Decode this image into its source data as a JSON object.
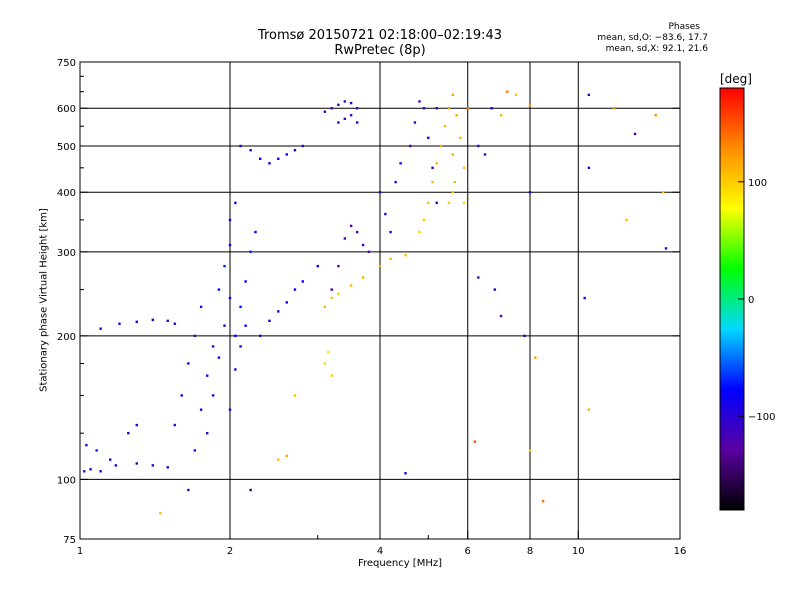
{
  "header": {
    "title": "Tromsø 20150721 02:18:00–02:19:43",
    "subtitle": "RwPretec (8p)",
    "stats_title": "Phases",
    "stats_o": "mean, sd,O: −83.6, 17.7",
    "stats_x": "mean, sd,X:  92.1, 21.6"
  },
  "chart_data": {
    "type": "scatter",
    "xlabel": "Frequency [MHz]",
    "ylabel": "Stationary phase Virtual Height [km]",
    "x_scale": "log",
    "y_scale": "log",
    "xlim": [
      1,
      16
    ],
    "ylim": [
      75,
      750
    ],
    "x_ticks": [
      1,
      2,
      4,
      6,
      8,
      10,
      16
    ],
    "x_ticks_minor": [
      3,
      5
    ],
    "x_tick_labels": [
      "1",
      "2",
      "4",
      "6",
      "8",
      "10",
      "16"
    ],
    "y_ticks": [
      75,
      100,
      200,
      300,
      400,
      500,
      600,
      750
    ],
    "y_tick_labels": [
      "75",
      "100",
      "200",
      "300",
      "400",
      "500",
      "600",
      "750"
    ],
    "grid": true,
    "grid_x": [
      2,
      4,
      6,
      8,
      10
    ],
    "grid_y": [
      100,
      200,
      300,
      400,
      500,
      600
    ],
    "colorbar": {
      "label": "[deg]",
      "range": [
        -180,
        180
      ],
      "ticks": [
        100,
        0,
        -100
      ],
      "tick_labels": [
        "100",
        "0",
        "−100"
      ],
      "colors": [
        "#000000",
        "#5a00a0",
        "#0000ff",
        "#00d8ff",
        "#00ff00",
        "#ffff00",
        "#ff8c00",
        "#ff0000"
      ]
    },
    "series": [
      {
        "values": [
          [
            1.02,
            104,
            -105
          ],
          [
            1.05,
            105,
            -100
          ],
          [
            1.1,
            104,
            -95
          ],
          [
            1.18,
            107,
            -100
          ],
          [
            1.3,
            108,
            -98
          ],
          [
            1.4,
            107,
            -102
          ],
          [
            1.5,
            106,
            -95
          ],
          [
            1.03,
            118,
            -100
          ],
          [
            1.08,
            115,
            -70
          ],
          [
            1.15,
            110,
            -105
          ],
          [
            1.25,
            125,
            -100
          ],
          [
            1.3,
            130,
            -95
          ],
          [
            1.1,
            207,
            -100
          ],
          [
            1.2,
            212,
            -95
          ],
          [
            1.3,
            214,
            -100
          ],
          [
            1.4,
            216,
            -90
          ],
          [
            1.5,
            215,
            -100
          ],
          [
            1.55,
            212,
            -98
          ],
          [
            1.55,
            130,
            -110
          ],
          [
            1.6,
            150,
            -100
          ],
          [
            1.65,
            175,
            -95
          ],
          [
            1.7,
            200,
            -105
          ],
          [
            1.75,
            230,
            -100
          ],
          [
            1.65,
            95,
            -105
          ],
          [
            1.7,
            115,
            -100
          ],
          [
            1.75,
            140,
            -98
          ],
          [
            1.8,
            165,
            -95
          ],
          [
            1.85,
            190,
            -100
          ],
          [
            1.8,
            125,
            -105
          ],
          [
            1.85,
            150,
            -100
          ],
          [
            1.9,
            180,
            -95
          ],
          [
            1.95,
            210,
            -100
          ],
          [
            2.0,
            240,
            -95
          ],
          [
            1.9,
            250,
            -75
          ],
          [
            1.95,
            280,
            -70
          ],
          [
            2.0,
            310,
            -80
          ],
          [
            2.0,
            350,
            -85
          ],
          [
            2.05,
            380,
            -90
          ],
          [
            2.05,
            200,
            -80
          ],
          [
            2.1,
            230,
            -75
          ],
          [
            2.15,
            260,
            -85
          ],
          [
            2.2,
            300,
            -70
          ],
          [
            2.25,
            330,
            -78
          ],
          [
            2.0,
            140,
            -100
          ],
          [
            2.05,
            170,
            -95
          ],
          [
            2.1,
            190,
            -90
          ],
          [
            2.15,
            210,
            -85
          ],
          [
            2.1,
            500,
            -90
          ],
          [
            2.2,
            490,
            -95
          ],
          [
            2.3,
            470,
            -85
          ],
          [
            2.4,
            460,
            -90
          ],
          [
            2.5,
            470,
            -80
          ],
          [
            2.6,
            480,
            -85
          ],
          [
            2.7,
            490,
            -90
          ],
          [
            2.8,
            500,
            -88
          ],
          [
            2.3,
            200,
            -90
          ],
          [
            2.4,
            215,
            -85
          ],
          [
            2.5,
            225,
            -95
          ],
          [
            2.6,
            235,
            -90
          ],
          [
            2.7,
            250,
            -85
          ],
          [
            2.8,
            260,
            -80
          ],
          [
            3.0,
            280,
            -85
          ],
          [
            3.1,
            590,
            -110
          ],
          [
            3.2,
            600,
            -115
          ],
          [
            3.3,
            610,
            -120
          ],
          [
            3.4,
            620,
            -110
          ],
          [
            3.5,
            615,
            -105
          ],
          [
            3.6,
            600,
            -100
          ],
          [
            3.3,
            560,
            -110
          ],
          [
            3.4,
            570,
            -108
          ],
          [
            3.5,
            580,
            -112
          ],
          [
            3.6,
            560,
            -105
          ],
          [
            3.2,
            250,
            -110
          ],
          [
            3.3,
            280,
            -130
          ],
          [
            3.4,
            320,
            -125
          ],
          [
            3.5,
            340,
            -120
          ],
          [
            3.6,
            330,
            -115
          ],
          [
            3.7,
            310,
            -110
          ],
          [
            3.8,
            300,
            -118
          ],
          [
            3.1,
            230,
            110
          ],
          [
            3.2,
            240,
            105
          ],
          [
            3.3,
            245,
            100
          ],
          [
            3.5,
            255,
            108
          ],
          [
            3.7,
            265,
            112
          ],
          [
            4.0,
            280,
            115
          ],
          [
            4.2,
            290,
            110
          ],
          [
            4.5,
            295,
            105
          ],
          [
            3.1,
            175,
            95
          ],
          [
            3.15,
            185,
            90
          ],
          [
            3.2,
            165,
            100
          ],
          [
            2.5,
            110,
            110
          ],
          [
            2.6,
            112,
            115
          ],
          [
            2.7,
            150,
            105
          ],
          [
            4.0,
            400,
            -100
          ],
          [
            4.1,
            360,
            -95
          ],
          [
            4.2,
            330,
            -90
          ],
          [
            4.3,
            420,
            -110
          ],
          [
            4.4,
            460,
            -105
          ],
          [
            4.6,
            500,
            -115
          ],
          [
            4.7,
            560,
            -110
          ],
          [
            4.8,
            620,
            -120
          ],
          [
            4.9,
            600,
            -100
          ],
          [
            5.0,
            520,
            -95
          ],
          [
            5.1,
            450,
            -105
          ],
          [
            5.2,
            380,
            -110
          ],
          [
            5.2,
            600,
            -95
          ],
          [
            4.8,
            330,
            100
          ],
          [
            4.9,
            350,
            105
          ],
          [
            5.0,
            380,
            108
          ],
          [
            5.1,
            420,
            110
          ],
          [
            5.2,
            460,
            112
          ],
          [
            5.3,
            500,
            115
          ],
          [
            5.4,
            550,
            110
          ],
          [
            5.5,
            600,
            118
          ],
          [
            5.6,
            640,
            120
          ],
          [
            5.7,
            580,
            115
          ],
          [
            5.8,
            520,
            110
          ],
          [
            5.9,
            450,
            105
          ],
          [
            5.6,
            480,
            112
          ],
          [
            5.65,
            420,
            108
          ],
          [
            5.5,
            380,
            100
          ],
          [
            5.6,
            400,
            102
          ],
          [
            5.9,
            380,
            98
          ],
          [
            6.3,
            500,
            -110
          ],
          [
            6.5,
            480,
            -100
          ],
          [
            6.7,
            600,
            -90
          ],
          [
            7.0,
            580,
            110
          ],
          [
            7.5,
            640,
            105
          ],
          [
            7.2,
            650,
            135
          ],
          [
            6.0,
            600,
            140
          ],
          [
            6.2,
            120,
            150
          ],
          [
            6.3,
            265,
            -110
          ],
          [
            6.8,
            250,
            -100
          ],
          [
            7.0,
            220,
            -120
          ],
          [
            8.0,
            610,
            130
          ],
          [
            8.0,
            400,
            -100
          ],
          [
            7.8,
            200,
            -90
          ],
          [
            8.2,
            180,
            120
          ],
          [
            8.5,
            90,
            140
          ],
          [
            8.0,
            115,
            100
          ],
          [
            10.5,
            640,
            -110
          ],
          [
            10.5,
            450,
            -100
          ],
          [
            10.3,
            240,
            -90
          ],
          [
            10.5,
            140,
            110
          ],
          [
            11.8,
            600,
            120
          ],
          [
            12.5,
            350,
            110
          ],
          [
            13.0,
            530,
            -120
          ],
          [
            14.3,
            580,
            130
          ],
          [
            14.8,
            400,
            100
          ],
          [
            15.0,
            305,
            -100
          ],
          [
            2.2,
            95,
            -150
          ],
          [
            1.45,
            85,
            110
          ],
          [
            4.5,
            103,
            -100
          ]
        ]
      }
    ]
  }
}
